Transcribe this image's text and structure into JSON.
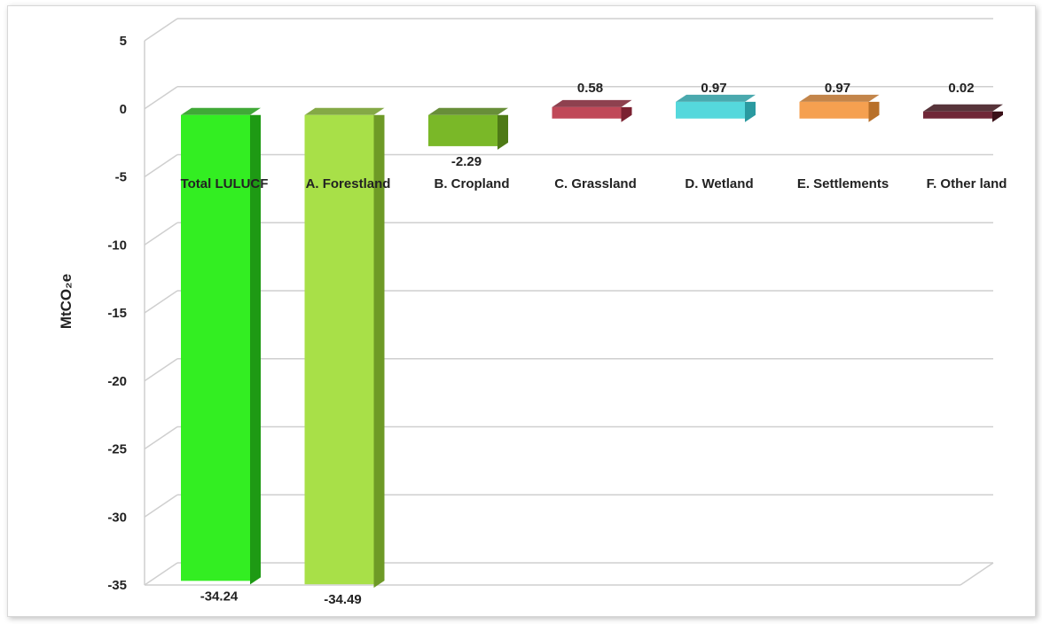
{
  "chart_data": {
    "type": "bar",
    "ylabel": "MtCO₂e",
    "ylim": [
      -35,
      5
    ],
    "yticks": [
      5,
      0,
      -5,
      -10,
      -15,
      -20,
      -25,
      -30,
      -35
    ],
    "grid": true,
    "categories": [
      "Total LULUCF",
      "A. Forestland",
      "B. Cropland",
      "C. Grassland",
      "D. Wetland",
      "E. Settlements",
      "F. Other land"
    ],
    "values": [
      -34.24,
      -34.49,
      -2.29,
      0.58,
      0.97,
      0.97,
      0.02
    ],
    "labels": [
      "-34.24",
      "-34.49",
      "-2.29",
      "0.58",
      "0.97",
      "0.97",
      "0.02"
    ],
    "colors": [
      "#33ee22",
      "#a8e048",
      "#7ab828",
      "#c04858",
      "#55d8dc",
      "#f5a050",
      "#702838"
    ],
    "side_colors": [
      "#1e9a14",
      "#6e9a26",
      "#4e7a16",
      "#7a2030",
      "#2a9aa0",
      "#b8702a",
      "#3a1018"
    ]
  }
}
